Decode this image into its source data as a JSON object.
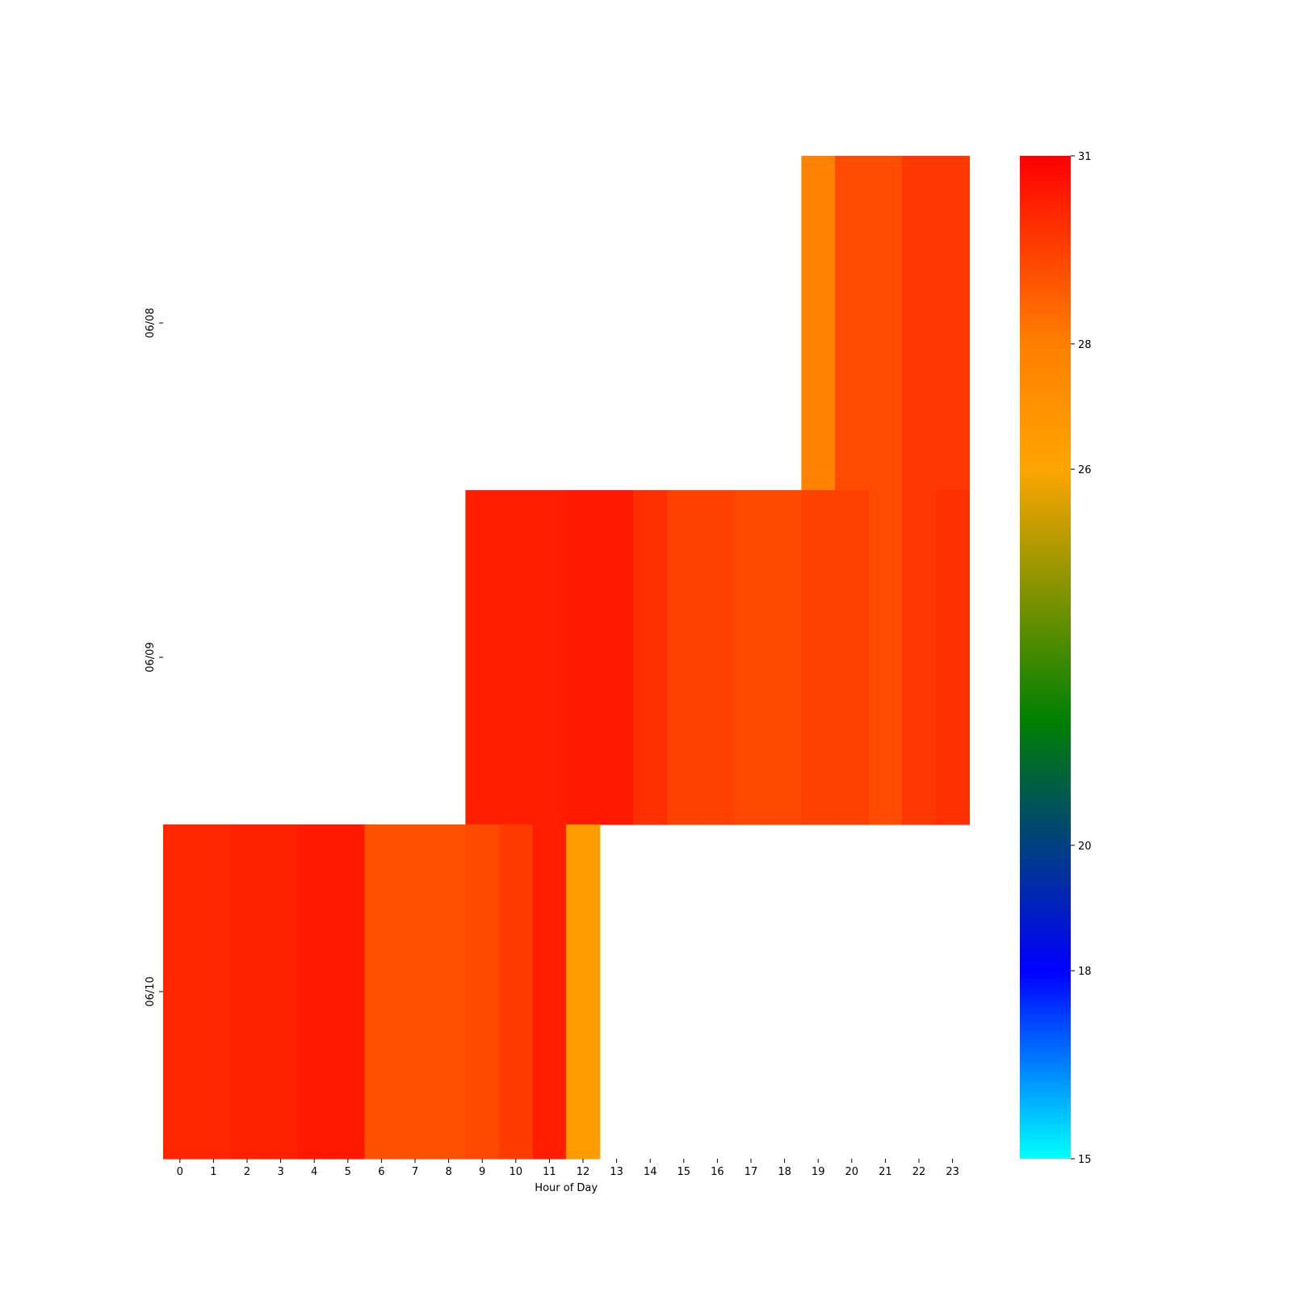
{
  "chart_data": {
    "type": "heatmap",
    "title": "",
    "xlabel": "Hour of Day",
    "ylabel": "",
    "x_categories": [
      "0",
      "1",
      "2",
      "3",
      "4",
      "5",
      "6",
      "7",
      "8",
      "9",
      "10",
      "11",
      "12",
      "13",
      "14",
      "15",
      "16",
      "17",
      "18",
      "19",
      "20",
      "21",
      "22",
      "23"
    ],
    "y_categories": [
      "06/08",
      "06/09",
      "06/10"
    ],
    "values": [
      [
        null,
        null,
        null,
        null,
        null,
        null,
        null,
        null,
        null,
        null,
        null,
        null,
        null,
        null,
        null,
        null,
        null,
        null,
        null,
        27.8,
        29.2,
        29.2,
        29.7,
        29.7
      ],
      [
        null,
        null,
        null,
        null,
        null,
        null,
        null,
        null,
        null,
        30.3,
        30.3,
        30.3,
        30.4,
        30.4,
        29.9,
        29.5,
        29.5,
        29.3,
        29.3,
        29.5,
        29.5,
        29.2,
        29.7,
        29.9
      ],
      [
        30.1,
        30.1,
        30.2,
        30.2,
        30.4,
        30.4,
        29.1,
        29.1,
        29.1,
        29.3,
        29.6,
        30.3,
        26.4,
        null,
        null,
        null,
        null,
        null,
        null,
        null,
        null,
        null,
        null,
        null
      ]
    ],
    "colorbar": {
      "vmin": 15,
      "vmax": 31,
      "ticks": [
        "15",
        "18",
        "20",
        "26",
        "28",
        "31"
      ],
      "stops": [
        {
          "value": 15,
          "color": "#00ffff"
        },
        {
          "value": 18,
          "color": "#0000ff"
        },
        {
          "value": 20,
          "color": "#004080"
        },
        {
          "value": 22,
          "color": "#008000"
        },
        {
          "value": 26,
          "color": "#ffa500"
        },
        {
          "value": 28,
          "color": "#ff7f00"
        },
        {
          "value": 31,
          "color": "#ff0000"
        }
      ]
    },
    "grid": false,
    "legend": "right"
  }
}
